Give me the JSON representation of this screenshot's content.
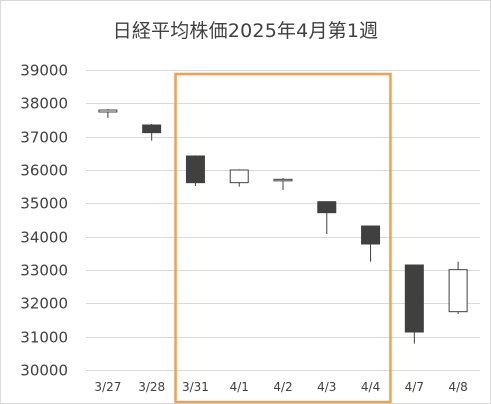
{
  "chart_data": {
    "type": "candlestick",
    "title": "日経平均株価2025年4月第1週",
    "xlabel": "",
    "ylabel": "",
    "ylim": [
      30000,
      39000
    ],
    "yticks": [
      30000,
      31000,
      32000,
      33000,
      34000,
      35000,
      36000,
      37000,
      38000,
      39000
    ],
    "grid": true,
    "categories": [
      "3/27",
      "3/28",
      "3/31",
      "4/1",
      "4/2",
      "4/3",
      "4/4",
      "4/7",
      "4/8"
    ],
    "open": [
      37740,
      37350,
      36420,
      35620,
      35720,
      35050,
      34320,
      33150,
      31750
    ],
    "high": [
      37830,
      37380,
      36440,
      36020,
      35760,
      35050,
      34330,
      33160,
      33250
    ],
    "low": [
      37560,
      36880,
      35520,
      35500,
      35400,
      34080,
      33250,
      30790,
      31680
    ],
    "close": [
      37800,
      37120,
      35620,
      36000,
      35720,
      34720,
      33780,
      31140,
      33010
    ],
    "highlight": {
      "from": "3/31",
      "to": "4/4",
      "color": "#f0a050"
    },
    "colors": {
      "up_fill": "#ffffff",
      "down_fill": "#404040",
      "stroke": "#404040",
      "grid": "#d9d9d9"
    }
  }
}
